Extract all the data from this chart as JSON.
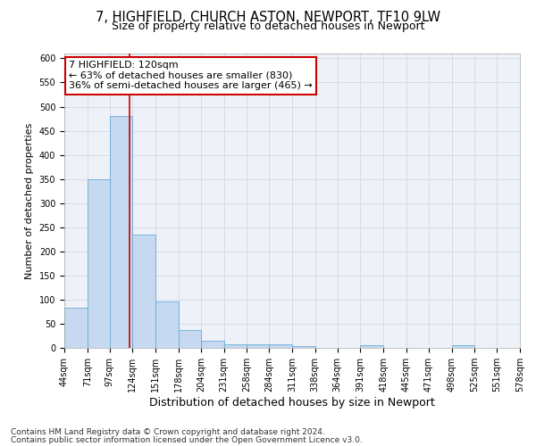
{
  "title": "7, HIGHFIELD, CHURCH ASTON, NEWPORT, TF10 9LW",
  "subtitle": "Size of property relative to detached houses in Newport",
  "xlabel": "Distribution of detached houses by size in Newport",
  "ylabel": "Number of detached properties",
  "bar_values": [
    84,
    350,
    480,
    235,
    96,
    37,
    15,
    7,
    8,
    8,
    3,
    0,
    0,
    5,
    0,
    0,
    0,
    5,
    0,
    0
  ],
  "bin_edges": [
    44,
    71,
    97,
    124,
    151,
    178,
    204,
    231,
    258,
    284,
    311,
    338,
    364,
    391,
    418,
    445,
    471,
    498,
    525,
    551,
    578
  ],
  "bar_color": "#c6d9f0",
  "bar_edge_color": "#6aaad4",
  "vline_x": 120,
  "vline_color": "#cc0000",
  "annotation_text": "7 HIGHFIELD: 120sqm\n← 63% of detached houses are smaller (830)\n36% of semi-detached houses are larger (465) →",
  "annotation_box_color": "#ffffff",
  "annotation_box_edge_color": "#cc0000",
  "yticks": [
    0,
    50,
    100,
    150,
    200,
    250,
    300,
    350,
    400,
    450,
    500,
    550,
    600
  ],
  "ylim": [
    0,
    610
  ],
  "footer_line1": "Contains HM Land Registry data © Crown copyright and database right 2024.",
  "footer_line2": "Contains public sector information licensed under the Open Government Licence v3.0.",
  "background_color": "#ffffff",
  "grid_color": "#d0d8e8",
  "title_fontsize": 10.5,
  "subtitle_fontsize": 9,
  "xlabel_fontsize": 9,
  "ylabel_fontsize": 8,
  "tick_fontsize": 7,
  "annotation_fontsize": 8,
  "footer_fontsize": 6.5
}
